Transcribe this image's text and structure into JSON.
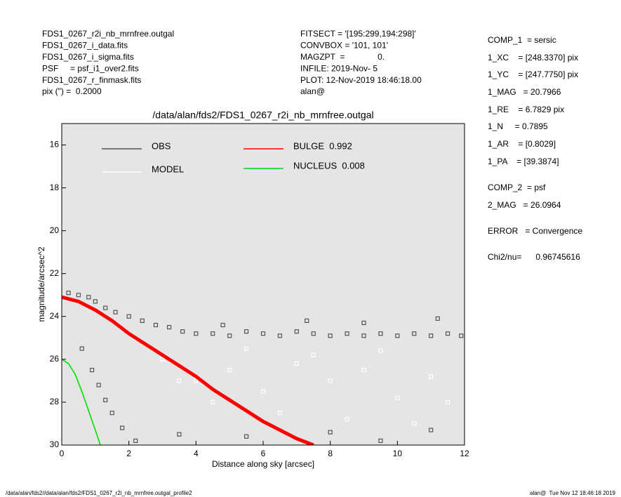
{
  "header": {
    "left": [
      "FDS1_0267_r2i_nb_mrnfree.outgal",
      "FDS1_0267_i_data.fits",
      "FDS1_0267_i_sigma.fits",
      "PSF     = psf_i1_over2.fits",
      "FDS1_0267_r_finmask.fits",
      "pix (\") =  0.2000"
    ],
    "middle": [
      "FITSECT = '[195:299,194:298]'",
      "CONVBOX = '101, 101'",
      "MAGZPT  =              0.",
      "INFILE: 2019-Nov- 5",
      "PLOT: 12-Nov-2019 18:46:18.00",
      "alan@"
    ],
    "right": [
      "COMP_1  = sersic",
      "1_XC    = [248.3370] pix",
      "1_YC    = [247.7750] pix",
      "1_MAG   = 20.7966",
      "1_RE    = 6.7829 pix",
      "1_N     = 0.7895",
      "1_AR    = [0.8029]",
      "1_PA    = [39.3874]",
      "COMP_2  = psf",
      "2_MAG   = 26.0964",
      "ERROR   = Convergence",
      "Chi2/nu=      0.96745616"
    ]
  },
  "footer": {
    "left": "/data/alan/fds2//data/alan/fds2/FDS1_0267_r2i_nb_mrnfree.outgal_profile2",
    "right": "alan@  Tue Nov 12 18:46:18 2019"
  },
  "chart_data": {
    "type": "scatter",
    "title": "/data/alan/fds2/FDS1_0267_r2i_nb_mrnfree.outgal",
    "x_label": "Distance along sky [arcsec]",
    "y_label": "magnitude/arcsec^2",
    "xlim": [
      0,
      12
    ],
    "ylim": [
      15,
      30
    ],
    "y_inverted": true,
    "xticks": [
      0,
      2,
      4,
      6,
      8,
      10,
      12
    ],
    "yticks": [
      16,
      18,
      20,
      22,
      24,
      26,
      28,
      30
    ],
    "background": "#e5e5e5",
    "series": [
      {
        "name": "OBS",
        "style": "points",
        "color": "#555555",
        "x": [
          0.2,
          0.5,
          0.8,
          1.0,
          1.3,
          1.6,
          2.0,
          2.4,
          2.8,
          3.2,
          3.6,
          4.0,
          4.5,
          5.0,
          5.5,
          6.0,
          6.5,
          7.0,
          7.5,
          8.0,
          8.5,
          9.0,
          9.5,
          10.0,
          10.5,
          11.0,
          11.5,
          11.9,
          0.6,
          0.9,
          1.1,
          1.3,
          1.5,
          1.8,
          2.2,
          3.5,
          5.5,
          8.0,
          9.5,
          11.0,
          4.8,
          7.3,
          9.0,
          11.2
        ],
        "values": [
          22.9,
          23.0,
          23.1,
          23.3,
          23.6,
          23.8,
          24.0,
          24.2,
          24.4,
          24.5,
          24.7,
          24.8,
          24.8,
          24.9,
          24.7,
          24.8,
          24.9,
          24.7,
          24.8,
          24.9,
          24.8,
          24.9,
          24.8,
          24.9,
          24.8,
          24.9,
          24.8,
          24.9,
          25.5,
          26.5,
          27.2,
          27.9,
          28.5,
          29.2,
          29.8,
          29.5,
          29.6,
          29.4,
          29.8,
          29.3,
          24.4,
          24.2,
          24.3,
          24.1
        ]
      },
      {
        "name": "MODEL",
        "style": "points",
        "color": "#ffffff",
        "x": [
          3,
          4,
          5,
          6,
          7,
          8,
          9,
          10,
          11,
          6.5,
          8.5,
          10.5,
          4.5,
          3.5,
          11.5,
          7.5,
          9.5,
          5.5
        ],
        "values": [
          26,
          27,
          26.5,
          27.5,
          26.2,
          27,
          26.5,
          27.8,
          26.8,
          28.5,
          28.8,
          29,
          28,
          27,
          28,
          25.8,
          25.6,
          25.5
        ]
      },
      {
        "name": "BULGE  0.992",
        "style": "line",
        "color": "#ff0000",
        "x": [
          0,
          0.5,
          1,
          1.5,
          2,
          2.5,
          3,
          3.5,
          4,
          4.5,
          5,
          5.5,
          6,
          6.5,
          7,
          7.5
        ],
        "values": [
          23.1,
          23.3,
          23.7,
          24.2,
          24.8,
          25.3,
          25.8,
          26.3,
          26.8,
          27.4,
          27.9,
          28.4,
          28.9,
          29.3,
          29.7,
          30
        ]
      },
      {
        "name": "NUCLEUS  0.008",
        "style": "line",
        "color": "#00dd00",
        "x": [
          0,
          0.2,
          0.4,
          0.6,
          0.8,
          1.0,
          1.15
        ],
        "values": [
          26,
          26.2,
          26.7,
          27.5,
          28.4,
          29.3,
          30
        ]
      }
    ]
  }
}
